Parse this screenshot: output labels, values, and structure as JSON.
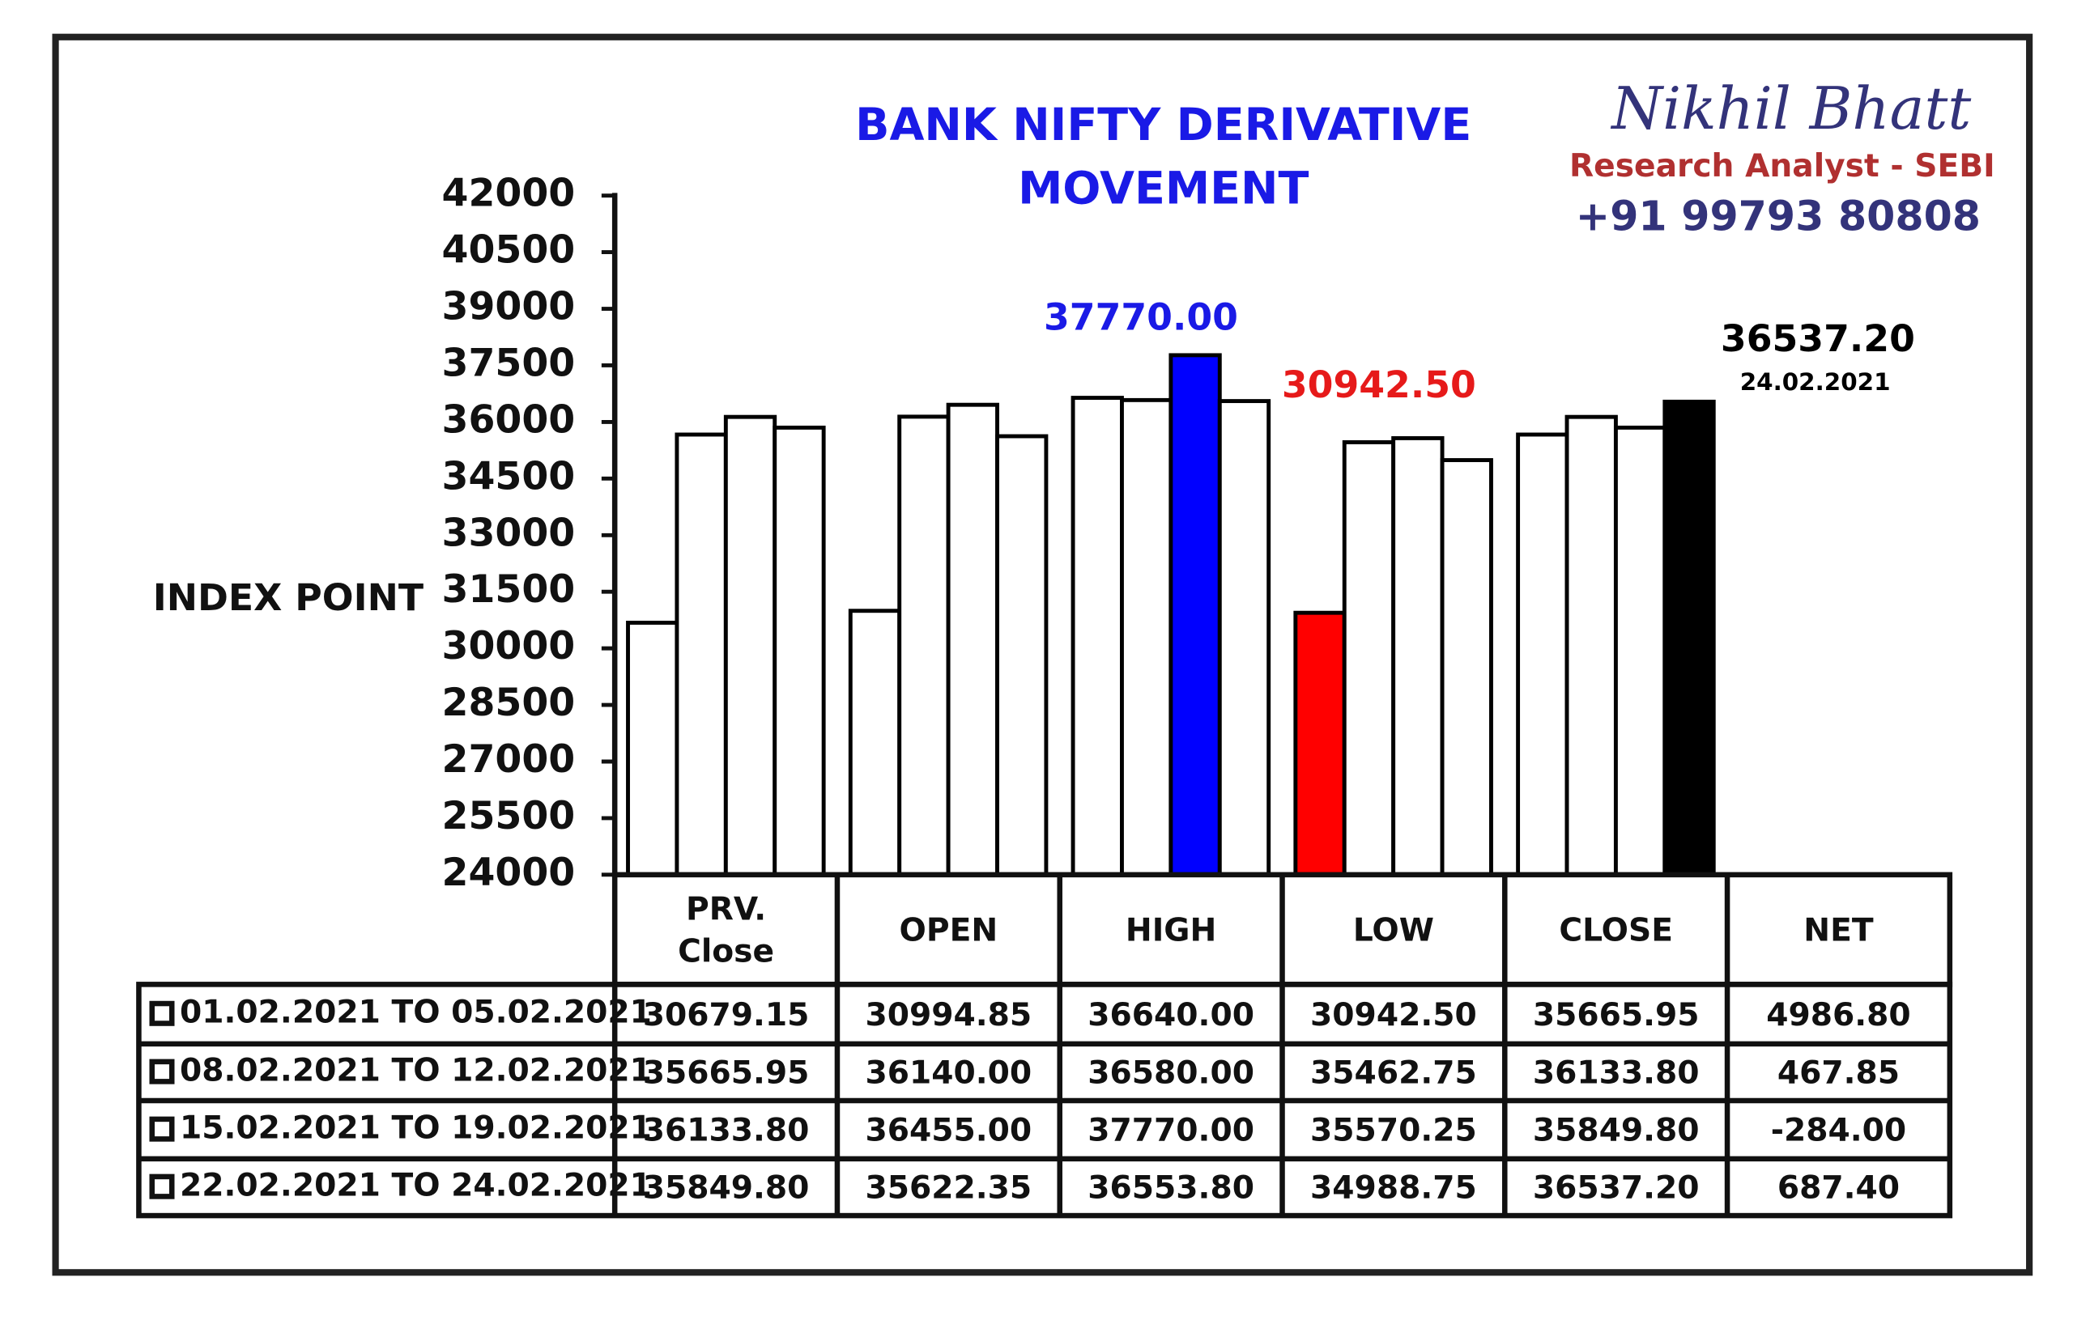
{
  "chart_data": {
    "type": "bar",
    "title": "BANK NIFTY DERIVATIVE MOVEMENT",
    "y_label": "INDEX POINT",
    "categories": [
      "PRV. Close",
      "OPEN",
      "HIGH",
      "LOW",
      "CLOSE",
      "NET"
    ],
    "ylim": [
      24000,
      42000
    ],
    "yticks": [
      24000,
      25500,
      27000,
      28500,
      30000,
      31500,
      33000,
      34500,
      36000,
      37500,
      39000,
      40500,
      42000
    ],
    "series": [
      {
        "name": "01.02.2021 TO 05.02.2021",
        "colors": [
          "#ffffff",
          "#ffffff",
          "#ffffff",
          "#ff0000",
          "#ffffff",
          "#ffffff"
        ],
        "values": [
          30679.15,
          30994.85,
          36640.0,
          30942.5,
          35665.95,
          4986.8
        ],
        "value_labels": [
          "30679.15",
          "30994.85",
          "36640.00",
          "30942.50",
          "35665.95",
          "4986.80"
        ]
      },
      {
        "name": "08.02.2021 TO 12.02.2021",
        "colors": [
          "#ffffff",
          "#ffffff",
          "#ffffff",
          "#ffffff",
          "#ffffff",
          "#ffffff"
        ],
        "values": [
          35665.95,
          36140.0,
          36580.0,
          35462.75,
          36133.8,
          467.85
        ],
        "value_labels": [
          "35665.95",
          "36140.00",
          "36580.00",
          "35462.75",
          "36133.80",
          "467.85"
        ]
      },
      {
        "name": "15.02.2021 TO 19.02.2021",
        "colors": [
          "#ffffff",
          "#ffffff",
          "#0000ff",
          "#ffffff",
          "#ffffff",
          "#ffffff"
        ],
        "values": [
          36133.8,
          36455.0,
          37770.0,
          35570.25,
          35849.8,
          -284.0
        ],
        "value_labels": [
          "36133.80",
          "36455.00",
          "37770.00",
          "35570.25",
          "35849.80",
          "-284.00"
        ]
      },
      {
        "name": "22.02.2021 TO 24.02.2021",
        "colors": [
          "#ffffff",
          "#ffffff",
          "#ffffff",
          "#ffffff",
          "#000000",
          "#ffffff"
        ],
        "values": [
          35849.8,
          35622.35,
          36553.8,
          34988.75,
          36537.2,
          687.4
        ],
        "value_labels": [
          "35849.80",
          "35622.35",
          "36553.80",
          "34988.75",
          "36537.20",
          "687.40"
        ]
      }
    ],
    "annotations": [
      {
        "text": "37770.00",
        "color": "#1a1ae6"
      },
      {
        "text": "30942.50",
        "color": "#e61a1a"
      },
      {
        "text": "36537.20",
        "color": "#000000"
      },
      {
        "text": "24.02.2021",
        "color": "#000000"
      }
    ]
  },
  "brand": {
    "name": "Nikhil Bhatt",
    "role": "Research Analyst - SEBI",
    "phone": "+91 99793 80808"
  }
}
